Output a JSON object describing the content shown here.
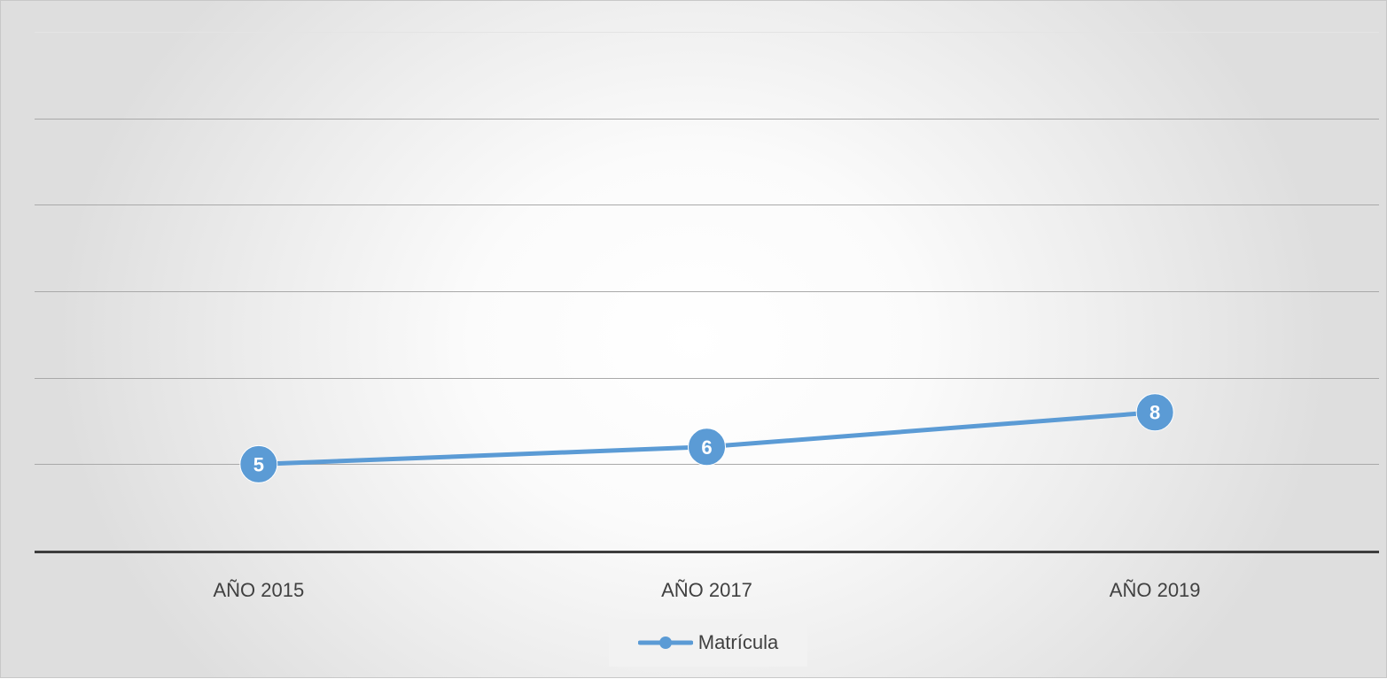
{
  "chart_data": {
    "type": "line",
    "title": "",
    "xlabel": "",
    "ylabel": "",
    "categories": [
      "AÑO 2015",
      "AÑO 2017",
      "AÑO 2019"
    ],
    "series": [
      {
        "name": "Matrícula",
        "values": [
          5,
          6,
          8
        ],
        "color": "#5b9bd5"
      }
    ],
    "ylim": [
      0,
      30
    ],
    "grid": true,
    "legend": "bottom",
    "data_labels": true,
    "markers": "circle"
  }
}
